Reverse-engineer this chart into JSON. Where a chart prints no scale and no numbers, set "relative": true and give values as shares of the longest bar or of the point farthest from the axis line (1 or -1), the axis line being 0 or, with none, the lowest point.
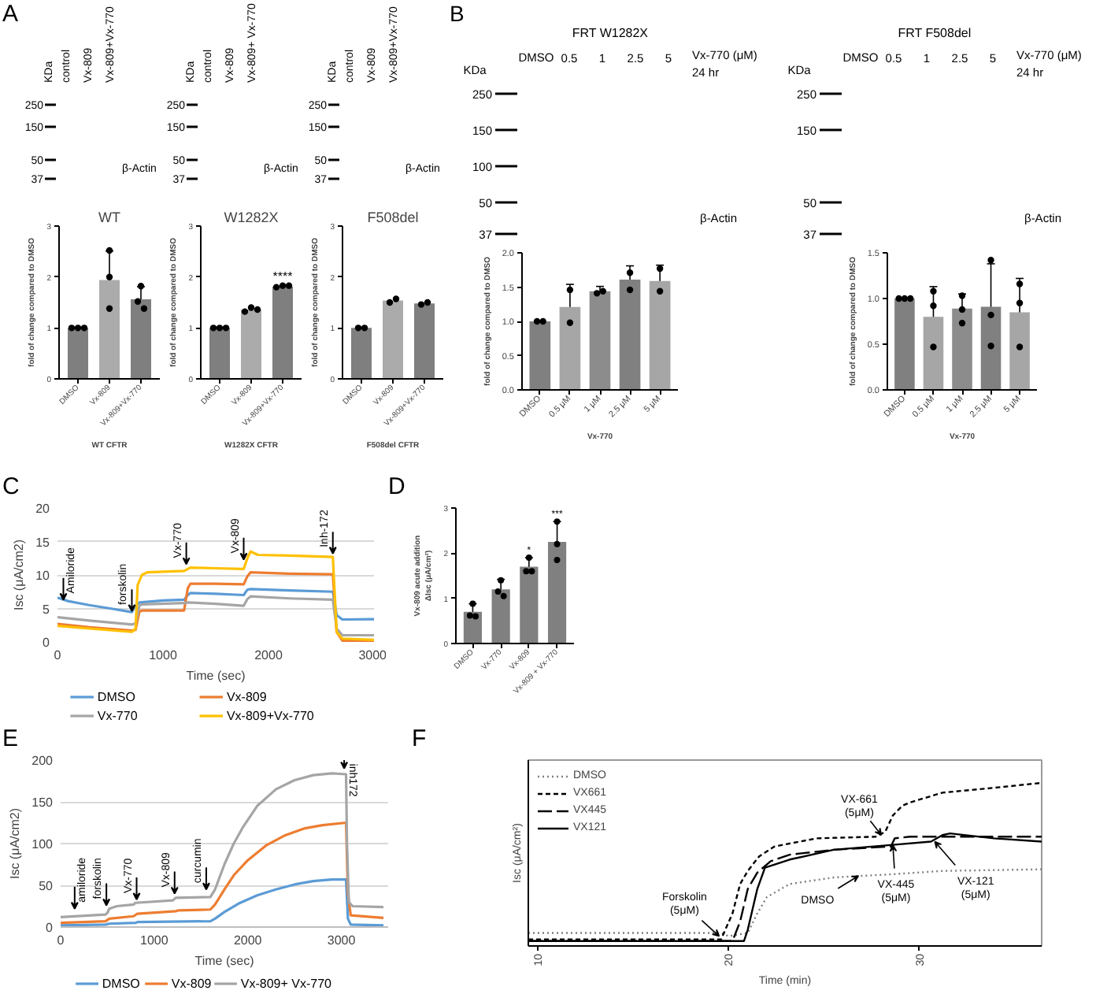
{
  "chart_data": [
    {
      "type": "other",
      "title": "A"
    },
    {
      "type": "other",
      "ylabel": "KDa",
      "categories": [
        "control",
        "Vx-809",
        "Vx-809+Vx-770"
      ],
      "annotations": [
        "250",
        "150",
        "50",
        "37",
        "β-Actin"
      ]
    },
    {
      "type": "other",
      "ylabel": "KDa",
      "categories": [
        "control",
        "Vx-809",
        "Vx-809+ Vx-770"
      ],
      "annotations": [
        "250",
        "150",
        "50",
        "37",
        "β-Actin"
      ]
    },
    {
      "type": "other",
      "ylabel": "KDa",
      "categories": [
        "control",
        "Vx-809",
        "Vx-809+Vx-770"
      ],
      "annotations": [
        "250",
        "150",
        "50",
        "37",
        "β-Actin"
      ]
    },
    {
      "type": "bar",
      "title": "WT",
      "xlabel": "WT CFTR",
      "ylabel": "fold of change compared to DMSO",
      "categories": [
        "DMSO",
        "Vx-809",
        "Vx-809+Vx-770"
      ],
      "ylim": [
        0,
        3
      ],
      "yticks": [
        0,
        1,
        2,
        3
      ],
      "marker": "circle",
      "series": [
        {
          "type": "bar",
          "colors": [
            "#7f7f7f",
            "#ababab",
            "#7f7f7f"
          ],
          "values": [
            1.0,
            1.94,
            1.56
          ],
          "errors": [
            null,
            0.57,
            0.25
          ]
        },
        {
          "type": "scatter",
          "color": "#000000",
          "x": [
            "DMSO",
            "DMSO",
            "DMSO",
            "Vx-809",
            "Vx-809",
            "Vx-809",
            "Vx-809+Vx-770",
            "Vx-809+Vx-770",
            "Vx-809+Vx-770"
          ],
          "values": [
            1.0,
            1.0,
            1.0,
            2.52,
            2.0,
            1.38,
            1.82,
            1.52,
            1.38
          ]
        }
      ]
    },
    {
      "type": "bar",
      "title": "W1282X",
      "xlabel": "W1282X CFTR",
      "ylabel": "fold of change compared to DMSO",
      "categories": [
        "DMSO",
        "Vx-809",
        "Vx-809+Vx-770"
      ],
      "ylim": [
        0,
        3
      ],
      "yticks": [
        0,
        1,
        2,
        3
      ],
      "marker": "circle",
      "annotations": [
        {
          "text": "****",
          "x": "Vx-809+Vx-770",
          "y": 1.84
        }
      ],
      "series": [
        {
          "type": "bar",
          "colors": [
            "#7f7f7f",
            "#ababab",
            "#7f7f7f"
          ],
          "values": [
            1.0,
            1.36,
            1.81
          ]
        },
        {
          "type": "scatter",
          "color": "#000000",
          "x": [
            "DMSO",
            "DMSO",
            "DMSO",
            "Vx-809",
            "Vx-809",
            "Vx-809",
            "Vx-809+Vx-770",
            "Vx-809+Vx-770",
            "Vx-809+Vx-770"
          ],
          "values": [
            1.0,
            1.0,
            1.0,
            1.32,
            1.4,
            1.36,
            1.8,
            1.83,
            1.83
          ]
        }
      ]
    },
    {
      "type": "bar",
      "title": "F508del",
      "xlabel": "F508del CFTR",
      "ylabel": "fold of change compared to DMSO",
      "categories": [
        "DMSO",
        "Vx-809",
        "Vx-809+Vx-770"
      ],
      "ylim": [
        0,
        3
      ],
      "yticks": [
        0,
        1,
        2,
        3
      ],
      "marker": "circle",
      "series": [
        {
          "type": "bar",
          "colors": [
            "#7f7f7f",
            "#ababab",
            "#7f7f7f"
          ],
          "values": [
            1.0,
            1.54,
            1.48
          ]
        },
        {
          "type": "scatter",
          "color": "#000000",
          "x": [
            "DMSO",
            "DMSO",
            "Vx-809",
            "Vx-809",
            "Vx-809+Vx-770",
            "Vx-809+Vx-770"
          ],
          "values": [
            1.0,
            1.0,
            1.5,
            1.57,
            1.46,
            1.5
          ]
        }
      ]
    },
    {
      "type": "other",
      "title": "B"
    },
    {
      "type": "other",
      "title": "FRT W1282X",
      "ylabel": "KDa",
      "xlabel": "Vx-770 (μM)\n24 hr",
      "categories": [
        "DMSO",
        "0.5",
        "1",
        "2.5",
        "5"
      ],
      "annotations": [
        "250",
        "150",
        "100",
        "50",
        "37",
        "β-Actin"
      ]
    },
    {
      "type": "other",
      "title": "FRT F508del",
      "ylabel": "KDa",
      "xlabel": "Vx-770 (μM)\n24 hr",
      "categories": [
        "DMSO",
        "0.5",
        "1",
        "2.5",
        "5"
      ],
      "annotations": [
        "250",
        "150",
        "50",
        "37",
        "β-Actin"
      ]
    },
    {
      "type": "bar",
      "xlabel": "Vx-770",
      "ylabel": "fold of change compared to DMSO",
      "categories": [
        "DMSO",
        "0.5 μM",
        "1 μM",
        "2.5 μM",
        "5 μM"
      ],
      "ylim": [
        0,
        2
      ],
      "yticks": [
        {
          "value": 0,
          "label": "0.0"
        },
        0.5,
        {
          "value": 1,
          "label": "1.0"
        },
        1.5,
        {
          "value": 2,
          "label": "2.0"
        }
      ],
      "marker": "circle",
      "series": [
        {
          "type": "bar",
          "colors": [
            "#808080",
            "#a6a6a6",
            "#8c8c8c",
            "#808080",
            "#a6a6a6"
          ],
          "values": [
            1.0,
            1.21,
            1.44,
            1.61,
            1.59
          ],
          "errors": [
            null,
            0.33,
            0.07,
            0.2,
            0.23
          ]
        },
        {
          "type": "scatter",
          "color": "#000000",
          "x": [
            "DMSO",
            "DMSO",
            "0.5 μM",
            "0.5 μM",
            "1 μM",
            "1 μM",
            "2.5 μM",
            "2.5 μM",
            "5 μM",
            "5 μM"
          ],
          "values": [
            1.0,
            1.0,
            1.46,
            0.98,
            1.41,
            1.44,
            1.71,
            1.46,
            1.77,
            1.44
          ]
        }
      ]
    },
    {
      "type": "bar",
      "xlabel": "Vx-770",
      "ylabel": "fold of change compared to DMSO",
      "categories": [
        "DMSO",
        "0.5 μM",
        "1 μM",
        "2.5 μM",
        "5 μM"
      ],
      "ylim": [
        0,
        1.5
      ],
      "yticks": [
        {
          "value": 0,
          "label": "0.0"
        },
        0.5,
        {
          "value": 1,
          "label": "1.0"
        },
        1.5
      ],
      "marker": "circle",
      "series": [
        {
          "type": "bar",
          "colors": [
            "#808080",
            "#a6a6a6",
            "#8c8c8c",
            "#808080",
            "#a6a6a6"
          ],
          "values": [
            1.0,
            0.8,
            0.89,
            0.91,
            0.85
          ],
          "errors": [
            null,
            0.33,
            0.16,
            0.47,
            0.37
          ]
        },
        {
          "type": "scatter",
          "color": "#000000",
          "x": [
            "DMSO",
            "DMSO",
            "DMSO",
            "0.5 μM",
            "0.5 μM",
            "0.5 μM",
            "1 μM",
            "1 μM",
            "1 μM",
            "2.5 μM",
            "2.5 μM",
            "2.5 μM",
            "5 μM",
            "5 μM",
            "5 μM"
          ],
          "values": [
            1.0,
            1.0,
            1.0,
            1.08,
            0.92,
            0.47,
            1.03,
            0.88,
            0.73,
            1.42,
            0.82,
            0.48,
            1.16,
            0.95,
            0.47
          ]
        }
      ]
    },
    {
      "type": "other",
      "title": "C"
    },
    {
      "type": "line",
      "xlabel": "Time (sec)",
      "ylabel": "Isc (μA/cm2)",
      "xlim": [
        0,
        3000
      ],
      "xticks": [
        0,
        1000,
        2000,
        3000
      ],
      "ylim": [
        0,
        20
      ],
      "yticks": [
        0,
        5,
        10,
        15,
        20
      ],
      "grid": "y",
      "legend": "bottom",
      "annotations": [
        {
          "text": "Amiloride",
          "x": 56,
          "y": 6.3
        },
        {
          "text": "forskolin",
          "x": 705,
          "y": 4.6
        },
        {
          "text": "Vx-770",
          "x": 1221,
          "y": 11.6
        },
        {
          "text": "Vx-809",
          "x": 1765,
          "y": 12.3
        },
        {
          "text": "Inh-172",
          "x": 2610,
          "y": 13.2
        }
      ],
      "series": [
        {
          "name": "DMSO",
          "color": "#5b9bd5",
          "x": [
            0,
            100,
            300,
            500,
            705,
            740,
            780,
            1000,
            1200,
            1235,
            1260,
            1500,
            1765,
            1800,
            1830,
            2200,
            2610,
            2646,
            2700,
            3000
          ],
          "values": [
            6.6,
            6.1,
            5.5,
            5.0,
            4.45,
            5.4,
            5.9,
            6.2,
            6.3,
            7.0,
            7.3,
            7.2,
            7.0,
            7.8,
            7.9,
            7.7,
            7.5,
            4.0,
            3.35,
            3.4
          ]
        },
        {
          "name": "Vx-809",
          "color": "#ed7d31",
          "x": [
            0,
            300,
            705,
            740,
            776,
            800,
            1200,
            1235,
            1260,
            1500,
            1765,
            1800,
            1830,
            2200,
            2610,
            2646,
            2700,
            3000
          ],
          "values": [
            2.7,
            2.2,
            1.7,
            1.8,
            4.5,
            4.7,
            4.7,
            8.0,
            8.7,
            8.7,
            8.6,
            9.8,
            10.4,
            10.2,
            10.1,
            1.5,
            0.2,
            0.2
          ]
        },
        {
          "name": "Vx-770",
          "color": "#a5a5a5",
          "x": [
            0,
            300,
            705,
            740,
            776,
            800,
            1200,
            1235,
            1500,
            1765,
            1800,
            1830,
            2200,
            2610,
            2646,
            2700,
            3000
          ],
          "values": [
            3.7,
            3.2,
            2.6,
            2.8,
            5.4,
            5.6,
            5.8,
            5.9,
            5.7,
            5.4,
            6.4,
            6.8,
            6.5,
            6.3,
            2.0,
            1.0,
            1.0
          ]
        },
        {
          "name": "Vx-809+Vx-770",
          "color": "#ffc000",
          "x": [
            0,
            300,
            705,
            740,
            760,
            800,
            850,
            1200,
            1235,
            1260,
            1500,
            1765,
            1800,
            1830,
            1900,
            2200,
            2610,
            2646,
            2700,
            3000
          ],
          "values": [
            2.4,
            2.0,
            1.5,
            2.0,
            8.5,
            10.0,
            10.4,
            10.6,
            10.9,
            11.1,
            11.0,
            10.9,
            12.5,
            13.5,
            13.0,
            12.9,
            12.7,
            1.5,
            0.5,
            0.3
          ]
        }
      ]
    },
    {
      "type": "other",
      "title": "D"
    },
    {
      "type": "bar",
      "ylabel": "Vx-809 acute addition\nΔIsc (μA/cm²)",
      "categories": [
        "DMSO",
        "Vx-770",
        "Vx-809",
        "Vx-809 + Vx-770"
      ],
      "ylim": [
        0,
        3
      ],
      "yticks": [
        0,
        1,
        2,
        3
      ],
      "marker": "circle",
      "annotations": [
        {
          "text": "*",
          "x": "Vx-809",
          "y": 1.9
        },
        {
          "text": "***",
          "x": "Vx-809 + Vx-770",
          "y": 2.7
        }
      ],
      "series": [
        {
          "type": "bar",
          "colors": [
            "#808080",
            "#808080",
            "#808080",
            "#808080"
          ],
          "values": [
            0.7,
            1.2,
            1.7,
            2.25
          ],
          "errors": [
            0.18,
            0.22,
            0.2,
            0.45
          ]
        },
        {
          "type": "scatter",
          "color": "#000000",
          "x": [
            "DMSO",
            "DMSO",
            "DMSO",
            "Vx-770",
            "Vx-770",
            "Vx-770",
            "Vx-809",
            "Vx-809",
            "Vx-809",
            "Vx-809 + Vx-770",
            "Vx-809 + Vx-770",
            "Vx-809 + Vx-770"
          ],
          "values": [
            0.88,
            0.62,
            0.6,
            1.4,
            1.15,
            1.05,
            1.9,
            1.6,
            1.6,
            2.7,
            2.2,
            1.85
          ]
        }
      ]
    },
    {
      "type": "other",
      "title": "E"
    },
    {
      "type": "line",
      "xlabel": "Time (sec)",
      "ylabel": "Isc (μA/cm2)",
      "xlim": [
        0,
        3500
      ],
      "xticks": [
        0,
        1000,
        2000,
        3000
      ],
      "ylim": [
        0,
        200
      ],
      "yticks": [
        0,
        50,
        100,
        150,
        200
      ],
      "grid": "y",
      "legend": "bottom",
      "annotations": [
        {
          "text": "amiloride",
          "x": 150,
          "y": 22
        },
        {
          "text": "forskolin",
          "x": 489,
          "y": 26
        },
        {
          "text": "Vx-770",
          "x": 812,
          "y": 33
        },
        {
          "text": "Vx-809",
          "x": 1218,
          "y": 40
        },
        {
          "text": "curcumin",
          "x": 1556,
          "y": 45
        },
        {
          "text": "inh172",
          "x": 3030,
          "y": 190
        }
      ],
      "series": [
        {
          "name": "DMSO",
          "color": "#5b9bd5",
          "x": [
            0,
            480,
            520,
            800,
            820,
            1600,
            1650,
            1750,
            1900,
            2100,
            2300,
            2500,
            2700,
            2900,
            3050,
            3070,
            3100,
            3450
          ],
          "values": [
            2,
            3,
            4,
            5,
            6,
            7,
            10,
            18,
            28,
            38,
            45,
            51,
            55,
            57,
            57,
            10,
            3,
            2
          ]
        },
        {
          "name": "Vx-809",
          "color": "#ed7d31",
          "x": [
            0,
            480,
            520,
            780,
            820,
            1230,
            1260,
            1600,
            1650,
            1750,
            1850,
            2000,
            2200,
            2400,
            2600,
            2800,
            3050,
            3070,
            3100,
            3450
          ],
          "values": [
            5,
            7,
            10,
            13,
            16,
            19,
            20,
            21,
            27,
            45,
            62,
            80,
            98,
            110,
            118,
            122,
            125,
            40,
            14,
            11
          ]
        },
        {
          "name": "Vx-809+ Vx-770",
          "color": "#a5a5a5",
          "x": [
            0,
            480,
            500,
            520,
            600,
            780,
            800,
            1200,
            1230,
            1600,
            1650,
            1750,
            1850,
            1950,
            2100,
            2300,
            2500,
            2700,
            2900,
            3050,
            3060,
            3080,
            3120,
            3450
          ],
          "values": [
            12,
            15,
            17,
            22,
            25,
            27,
            29,
            32,
            35,
            36,
            45,
            75,
            100,
            120,
            145,
            165,
            176,
            182,
            184,
            183,
            100,
            30,
            25,
            24
          ]
        }
      ]
    },
    {
      "type": "other",
      "title": "F"
    },
    {
      "type": "line",
      "xlabel": "Time (min)",
      "ylabel": "Isc (μA/cm²)",
      "relative": true,
      "xlim": [
        9.5,
        36.4
      ],
      "xticks": [
        10,
        20,
        30
      ],
      "legend": "top left",
      "annotations": [
        {
          "text": "Forskolin\n(5μM)",
          "x": 19.5,
          "y": 0.06
        },
        {
          "text": "VX-661\n(5μM)",
          "x": 28.0,
          "y": 0.68
        },
        {
          "text": "DMSO",
          "x": 26.8,
          "y": 0.43
        },
        {
          "text": "VX-445\n(5μM)",
          "x": 28.6,
          "y": 0.62
        },
        {
          "text": "VX-121\n(5μM)",
          "x": 30.8,
          "y": 0.64
        }
      ],
      "series": [
        {
          "name": "DMSO",
          "color": "#7f7f7f",
          "line_style": "dotted",
          "x": [
            9.5,
            19.6,
            20.0,
            21.0,
            21.5,
            22.0,
            23.2,
            25.5,
            28.6,
            31.2,
            36.4
          ],
          "values": [
            0.08,
            0.08,
            0.06,
            0.08,
            0.2,
            0.3,
            0.38,
            0.42,
            0.44,
            0.46,
            0.47
          ]
        },
        {
          "name": "VX661",
          "color": "#000000",
          "line_style": "dashed",
          "x": [
            9.5,
            19.6,
            20.2,
            20.6,
            21.0,
            21.6,
            22.4,
            24.6,
            27.7,
            28.2,
            28.6,
            29.1,
            29.5,
            31.2,
            33.9,
            36.4
          ],
          "values": [
            0.04,
            0.04,
            0.2,
            0.38,
            0.46,
            0.55,
            0.61,
            0.66,
            0.67,
            0.7,
            0.8,
            0.86,
            0.88,
            0.94,
            0.97,
            1.0
          ]
        },
        {
          "name": "VX445",
          "color": "#000000",
          "line_style": "dashed",
          "x": [
            9.5,
            20.2,
            20.6,
            21.0,
            21.5,
            22.2,
            23.2,
            25.5,
            28.5,
            28.7,
            29.5,
            32.0,
            36.4
          ],
          "values": [
            0.03,
            0.03,
            0.15,
            0.35,
            0.45,
            0.52,
            0.56,
            0.59,
            0.61,
            0.66,
            0.67,
            0.67,
            0.67
          ]
        },
        {
          "name": "VX121",
          "color": "#000000",
          "line_style": "solid",
          "x": [
            9.5,
            20.8,
            21.0,
            21.5,
            21.9,
            23.2,
            25.5,
            28.6,
            30.6,
            31.2,
            31.6,
            33.9,
            36.4
          ],
          "values": [
            0.03,
            0.03,
            0.1,
            0.35,
            0.48,
            0.53,
            0.59,
            0.62,
            0.64,
            0.68,
            0.69,
            0.66,
            0.64
          ]
        }
      ]
    }
  ]
}
